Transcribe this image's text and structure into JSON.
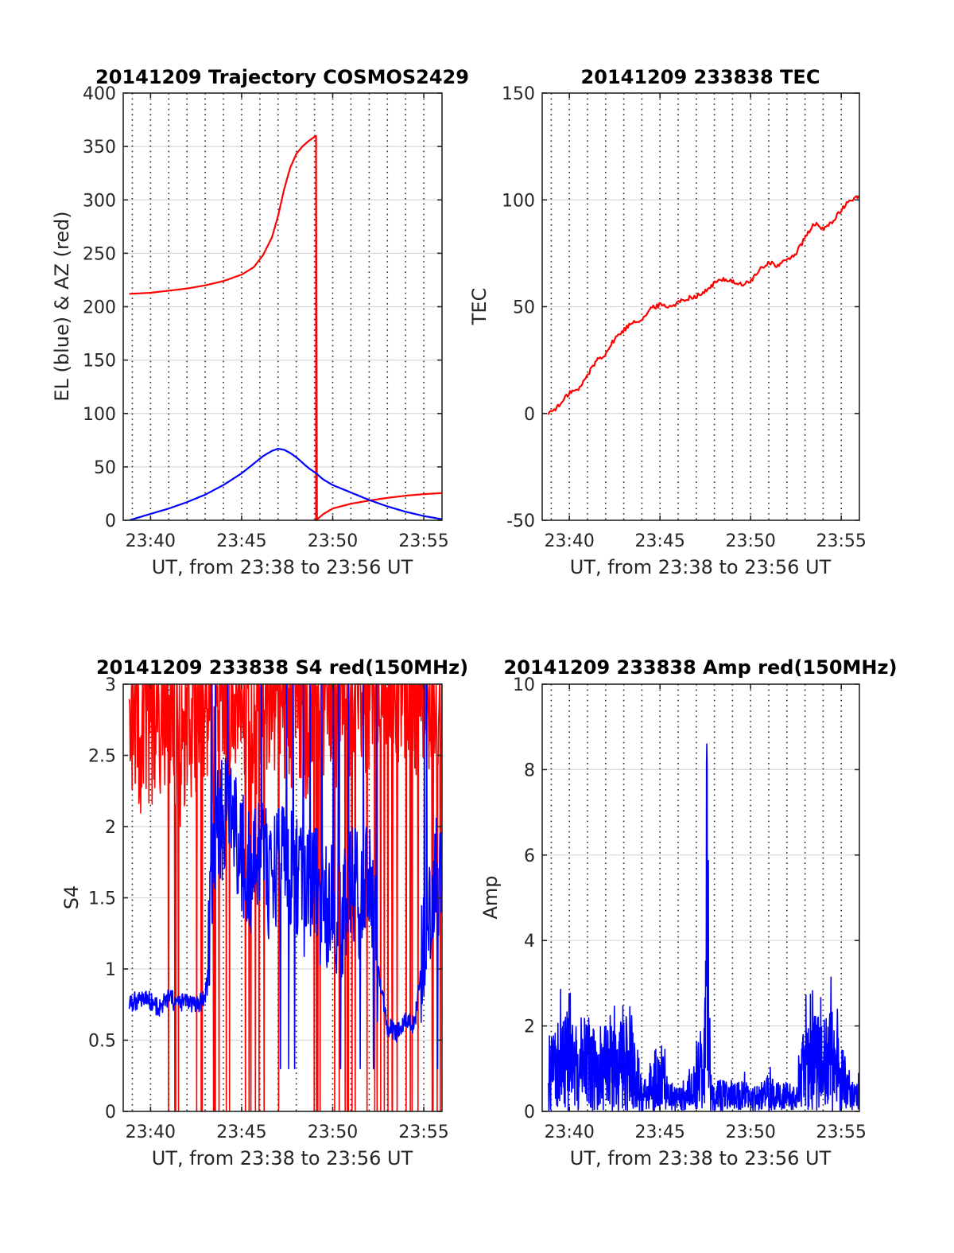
{
  "figure": {
    "background": "#ffffff"
  },
  "chart_data": [
    {
      "id": "trajectory",
      "type": "line",
      "title": "20141209 Trajectory COSMOS2429",
      "xlabel": "UT, from 23:38 to 23:56 UT",
      "ylabel": "EL (blue) & AZ (red)",
      "xlim": [
        "23:38:30",
        "23:56:00"
      ],
      "ylim": [
        0,
        400
      ],
      "yticks": [
        0,
        50,
        100,
        150,
        200,
        250,
        300,
        350,
        400
      ],
      "xticks": [
        "23:40",
        "23:45",
        "23:50",
        "23:55"
      ],
      "grid": true,
      "series": [
        {
          "color": "#ff0000",
          "x": [
            "23:38:50",
            "23:40:00",
            "23:41:00",
            "23:42:00",
            "23:43:00",
            "23:44:00",
            "23:45:00",
            "23:45:40",
            "23:46:10",
            "23:46:40",
            "23:47:00",
            "23:47:20",
            "23:47:40",
            "23:48:00",
            "23:48:20",
            "23:48:40",
            "23:49:05",
            "23:49:05",
            "23:49:30",
            "23:50:00",
            "23:51:00",
            "23:52:00",
            "23:53:00",
            "23:54:00",
            "23:55:00",
            "23:56:00"
          ],
          "values": [
            212,
            213,
            215,
            217,
            220,
            224,
            230,
            237,
            248,
            265,
            285,
            310,
            330,
            343,
            350,
            355,
            360,
            0,
            6,
            11,
            15.5,
            18.5,
            21,
            23,
            24.5,
            25.5
          ]
        },
        {
          "color": "#0000ff",
          "x": [
            "23:38:50",
            "23:40:00",
            "23:41:00",
            "23:42:00",
            "23:43:00",
            "23:44:00",
            "23:45:00",
            "23:45:40",
            "23:46:10",
            "23:46:40",
            "23:47:00",
            "23:47:20",
            "23:47:40",
            "23:48:00",
            "23:48:20",
            "23:48:40",
            "23:49:05",
            "23:49:30",
            "23:50:00",
            "23:51:00",
            "23:52:00",
            "23:53:00",
            "23:54:00",
            "23:55:00",
            "23:56:00"
          ],
          "values": [
            0,
            6,
            11,
            17,
            24,
            33,
            44,
            53,
            60,
            65,
            67,
            66,
            63,
            59,
            54,
            49,
            44,
            38,
            33,
            26,
            19,
            13,
            8,
            4,
            1
          ]
        }
      ]
    },
    {
      "id": "tec",
      "type": "line",
      "title": "20141209 233838 TEC",
      "xlabel": "UT, from 23:38 to 23:56 UT",
      "ylabel": "TEC",
      "xlim": [
        "23:38:30",
        "23:56:00"
      ],
      "ylim": [
        -50,
        150
      ],
      "yticks": [
        -50,
        0,
        50,
        100,
        150
      ],
      "xticks": [
        "23:40",
        "23:45",
        "23:50",
        "23:55"
      ],
      "grid": true,
      "series": [
        {
          "color": "#ff0000",
          "x": [
            "23:38:50",
            "23:39:30",
            "23:40:00",
            "23:40:30",
            "23:41:00",
            "23:41:30",
            "23:42:00",
            "23:42:30",
            "23:43:00",
            "23:43:30",
            "23:44:00",
            "23:44:30",
            "23:45:00",
            "23:45:30",
            "23:46:00",
            "23:46:30",
            "23:47:00",
            "23:47:30",
            "23:48:00",
            "23:48:30",
            "23:49:00",
            "23:49:30",
            "23:50:00",
            "23:50:30",
            "23:51:00",
            "23:51:30",
            "23:52:00",
            "23:52:30",
            "23:53:00",
            "23:53:30",
            "23:54:00",
            "23:54:30",
            "23:55:00",
            "23:55:30",
            "23:56:00"
          ],
          "values": [
            0,
            4,
            10,
            11,
            18,
            25,
            28,
            35,
            39,
            43,
            44,
            49,
            51,
            50,
            52,
            54,
            55,
            57,
            61,
            63,
            62,
            60,
            62,
            67,
            71,
            69,
            72,
            75,
            82,
            89,
            86,
            90,
            95,
            100,
            102
          ]
        }
      ]
    },
    {
      "id": "s4",
      "type": "line",
      "title": "20141209 233838 S4 red(150MHz)",
      "xlabel": "UT, from 23:38 to 23:56 UT",
      "ylabel": "S4",
      "xlim": [
        "23:38:30",
        "23:56:00"
      ],
      "ylim": [
        0,
        3
      ],
      "yticks": [
        0,
        0.5,
        1,
        1.5,
        2,
        2.5,
        3
      ],
      "xticks": [
        "23:40",
        "23:45",
        "23:50",
        "23:55"
      ],
      "grid": true,
      "series": [
        {
          "color": "#ff0000",
          "x": [
            "23:38:50",
            "23:39:30",
            "23:40:00",
            "23:40:30",
            "23:41:00",
            "23:41:30",
            "23:42:00",
            "23:42:30",
            "23:43:00",
            "23:43:30",
            "23:44:00",
            "23:44:30",
            "23:45:00",
            "23:45:30",
            "23:46:00",
            "23:46:30",
            "23:47:00",
            "23:47:30",
            "23:48:00",
            "23:48:30",
            "23:49:00",
            "23:49:30",
            "23:50:00",
            "23:50:30",
            "23:51:00",
            "23:51:30",
            "23:52:00",
            "23:52:30",
            "23:53:00",
            "23:53:30",
            "23:54:00",
            "23:54:30",
            "23:55:00",
            "23:55:30",
            "23:56:00"
          ],
          "values": [
            2.7,
            2.5,
            2.6,
            2.4,
            2.7,
            2.3,
            2.6,
            2.5,
            2.8,
            2.4,
            2.9,
            2.6,
            2.8,
            2.5,
            2.7,
            2.6,
            2.9,
            2.6,
            2.8,
            2.5,
            2.9,
            2.7,
            2.6,
            2.8,
            2.5,
            2.9,
            2.7,
            2.8,
            2.9,
            2.8,
            2.9,
            2.8,
            2.7,
            2.9,
            2.8
          ]
        },
        {
          "color": "#0000ff",
          "x": [
            "23:38:50",
            "23:39:30",
            "23:40:00",
            "23:40:30",
            "23:41:00",
            "23:41:30",
            "23:42:00",
            "23:42:30",
            "23:43:00",
            "23:43:30",
            "23:44:00",
            "23:44:30",
            "23:45:00",
            "23:45:30",
            "23:46:00",
            "23:46:30",
            "23:47:00",
            "23:47:30",
            "23:48:00",
            "23:48:30",
            "23:49:00",
            "23:49:30",
            "23:50:00",
            "23:50:30",
            "23:51:00",
            "23:51:30",
            "23:52:00",
            "23:52:30",
            "23:53:00",
            "23:53:30",
            "23:54:00",
            "23:54:30",
            "23:55:00",
            "23:55:30",
            "23:56:00"
          ],
          "values": [
            0.75,
            0.8,
            0.78,
            0.72,
            0.8,
            0.75,
            0.78,
            0.73,
            0.8,
            1.9,
            2.1,
            2.0,
            1.8,
            1.7,
            1.9,
            1.6,
            1.7,
            1.8,
            1.7,
            1.5,
            1.6,
            1.4,
            1.5,
            1.3,
            1.6,
            1.5,
            1.6,
            1.0,
            0.6,
            0.55,
            0.65,
            0.6,
            1.2,
            1.6,
            1.7
          ]
        }
      ]
    },
    {
      "id": "amp",
      "type": "line",
      "title": "20141209 233838 Amp red(150MHz)",
      "xlabel": "UT, from 23:38 to 23:56 UT",
      "ylabel": "Amp",
      "xlim": [
        "23:38:30",
        "23:56:00"
      ],
      "ylim": [
        0,
        10
      ],
      "yticks": [
        0,
        2,
        4,
        6,
        8,
        10
      ],
      "xticks": [
        "23:40",
        "23:45",
        "23:50",
        "23:55"
      ],
      "grid": true,
      "series": [
        {
          "color": "#0000ff",
          "x": [
            "23:38:50",
            "23:39:30",
            "23:40:00",
            "23:40:30",
            "23:41:00",
            "23:41:30",
            "23:42:00",
            "23:42:30",
            "23:43:00",
            "23:43:20",
            "23:43:40",
            "23:44:00",
            "23:44:30",
            "23:45:00",
            "23:45:30",
            "23:46:00",
            "23:46:30",
            "23:47:00",
            "23:47:20",
            "23:47:35",
            "23:47:50",
            "23:48:00",
            "23:48:30",
            "23:49:00",
            "23:49:30",
            "23:50:00",
            "23:50:30",
            "23:51:00",
            "23:51:30",
            "23:52:00",
            "23:52:30",
            "23:53:00",
            "23:53:30",
            "23:54:00",
            "23:54:30",
            "23:55:00",
            "23:55:30",
            "23:56:00"
          ],
          "values": [
            2.6,
            2.7,
            3.0,
            2.4,
            2.8,
            2.3,
            2.6,
            3.1,
            2.7,
            3.3,
            2.4,
            0.8,
            1.4,
            2.3,
            0.9,
            0.7,
            0.8,
            1.5,
            2.1,
            8.6,
            0.8,
            0.7,
            1.2,
            0.8,
            0.9,
            0.7,
            0.8,
            1.1,
            0.8,
            0.9,
            0.7,
            2.8,
            3.1,
            2.6,
            3.0,
            2.2,
            0.9,
            0.8
          ]
        }
      ]
    }
  ]
}
